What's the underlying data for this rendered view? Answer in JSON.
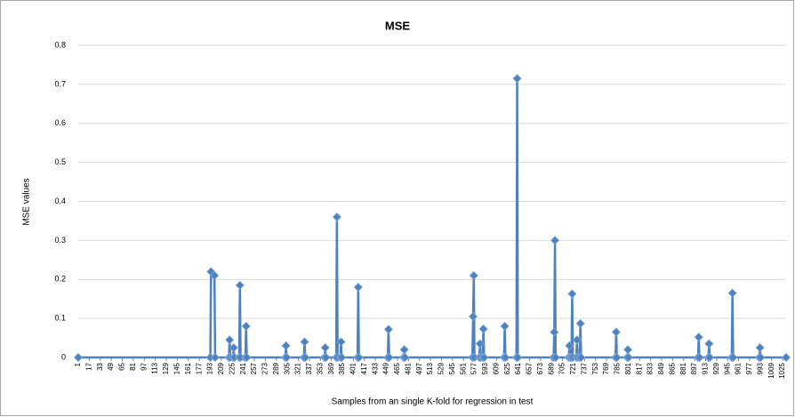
{
  "chart_data": {
    "type": "line",
    "title": "MSE",
    "x_label": "Samples from an single K-fold for regression in test",
    "y_label": "MSE values",
    "x": [
      1,
      193,
      194,
      199,
      200,
      220,
      221,
      222,
      226,
      227,
      228,
      235,
      236,
      237,
      244,
      245,
      246,
      302,
      303,
      304,
      329,
      330,
      331,
      359,
      360,
      361,
      376,
      377,
      378,
      382,
      383,
      384,
      407,
      408,
      409,
      451,
      452,
      453,
      474,
      475,
      476,
      574,
      575,
      576,
      577,
      584,
      585,
      586,
      589,
      590,
      591,
      620,
      621,
      622,
      638,
      639,
      640,
      692,
      693,
      694,
      695,
      714,
      715,
      716,
      718,
      719,
      720,
      725,
      726,
      727,
      730,
      731,
      732,
      782,
      783,
      784,
      799,
      800,
      801,
      902,
      903,
      904,
      917,
      918,
      919,
      951,
      952,
      953,
      991,
      992,
      993,
      1030
    ],
    "series": [
      {
        "color": "#4f81bd",
        "values": [
          0,
          0,
          0.22,
          0.21,
          0,
          0,
          0.045,
          0,
          0,
          0.025,
          0,
          0,
          0.185,
          0,
          0,
          0.08,
          0,
          0,
          0.03,
          0,
          0,
          0.04,
          0,
          0,
          0.025,
          0,
          0,
          0.36,
          0,
          0,
          0.04,
          0,
          0,
          0.18,
          0,
          0,
          0.072,
          0,
          0,
          0.02,
          0,
          0,
          0.105,
          0.21,
          0,
          0,
          0.035,
          0,
          0,
          0.073,
          0,
          0,
          0.08,
          0,
          0,
          0.715,
          0,
          0,
          0.065,
          0.3,
          0,
          0,
          0.03,
          0,
          0,
          0.163,
          0,
          0,
          0.045,
          0,
          0,
          0.087,
          0,
          0,
          0.065,
          0,
          0,
          0.02,
          0,
          0,
          0.052,
          0,
          0,
          0.035,
          0,
          0,
          0.165,
          0,
          0,
          0.025,
          0,
          0
        ]
      }
    ],
    "xlim": [
      1,
      1030
    ],
    "xticks": [
      1,
      17,
      33,
      49,
      65,
      81,
      97,
      113,
      129,
      145,
      161,
      177,
      193,
      209,
      225,
      241,
      257,
      273,
      289,
      305,
      321,
      337,
      353,
      369,
      385,
      401,
      417,
      433,
      449,
      465,
      481,
      497,
      513,
      529,
      545,
      561,
      577,
      593,
      609,
      625,
      641,
      657,
      673,
      689,
      705,
      721,
      737,
      753,
      769,
      785,
      801,
      817,
      833,
      849,
      865,
      881,
      897,
      913,
      929,
      945,
      961,
      977,
      993,
      1009,
      1025
    ],
    "ylim": [
      0,
      0.8
    ],
    "yticks": [
      0,
      0.1,
      0.2,
      0.3,
      0.4,
      0.5,
      0.6,
      0.7,
      0.8
    ],
    "grid": true
  }
}
